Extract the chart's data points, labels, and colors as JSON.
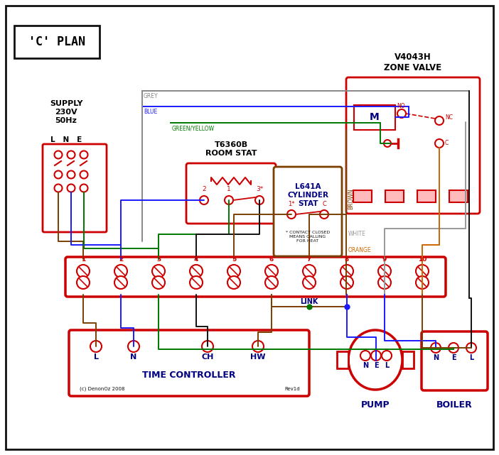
{
  "bg": "#ffffff",
  "RED": "#cc0000",
  "BLUE": "#1a1aff",
  "GREEN": "#007700",
  "GREY": "#888888",
  "BROWN": "#7B3F00",
  "BLACK": "#111111",
  "ORANGE": "#cc6600",
  "DKBLUE": "#000080",
  "WHITE_WIRE": "#999999",
  "title": "'C' PLAN",
  "zone_valve": "V4043H\nZONE VALVE",
  "room_stat": "T6360B\nROOM STAT",
  "cyl_stat": "L641A\nCYLINDER\nSTAT",
  "supply_text": "SUPPLY\n230V\n50Hz",
  "tc_label": "TIME CONTROLLER",
  "pump_label": "PUMP",
  "boiler_label": "BOILER",
  "link_label": "LINK",
  "copyright": "(c) DenonOz 2008",
  "rev": "Rev1d",
  "note": "* CONTACT CLOSED\nMEANS CALLING\nFOR HEAT"
}
